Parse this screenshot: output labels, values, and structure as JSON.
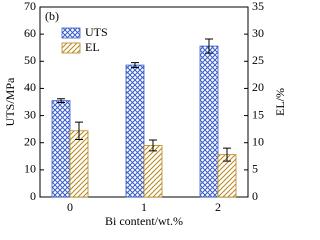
{
  "chart_data": {
    "type": "bar",
    "panel_label": "(b)",
    "x_label": "Bi content/wt.%",
    "y_label": "UTS/MPa",
    "y2_label": "EL/%",
    "categories": [
      "0",
      "1",
      "2"
    ],
    "series": [
      {
        "name": "UTS",
        "color": "#3a5ec8",
        "hatch": "crosshatch",
        "values": [
          35.5,
          48.6,
          55.6
        ],
        "errors": [
          0.7,
          0.9,
          2.6
        ]
      },
      {
        "name": "EL",
        "color": "#b8861b",
        "hatch": "diagonal",
        "axis": "y2",
        "values": [
          12.2,
          9.5,
          7.8
        ],
        "errors": [
          1.6,
          1.0,
          1.2
        ]
      }
    ],
    "ylim": [
      0,
      70
    ],
    "yticks": [
      0,
      10,
      20,
      30,
      40,
      50,
      60,
      70
    ],
    "y2lim": [
      0,
      35
    ],
    "y2ticks": [
      0,
      5,
      10,
      15,
      20,
      25,
      30,
      35
    ],
    "grid": false
  }
}
